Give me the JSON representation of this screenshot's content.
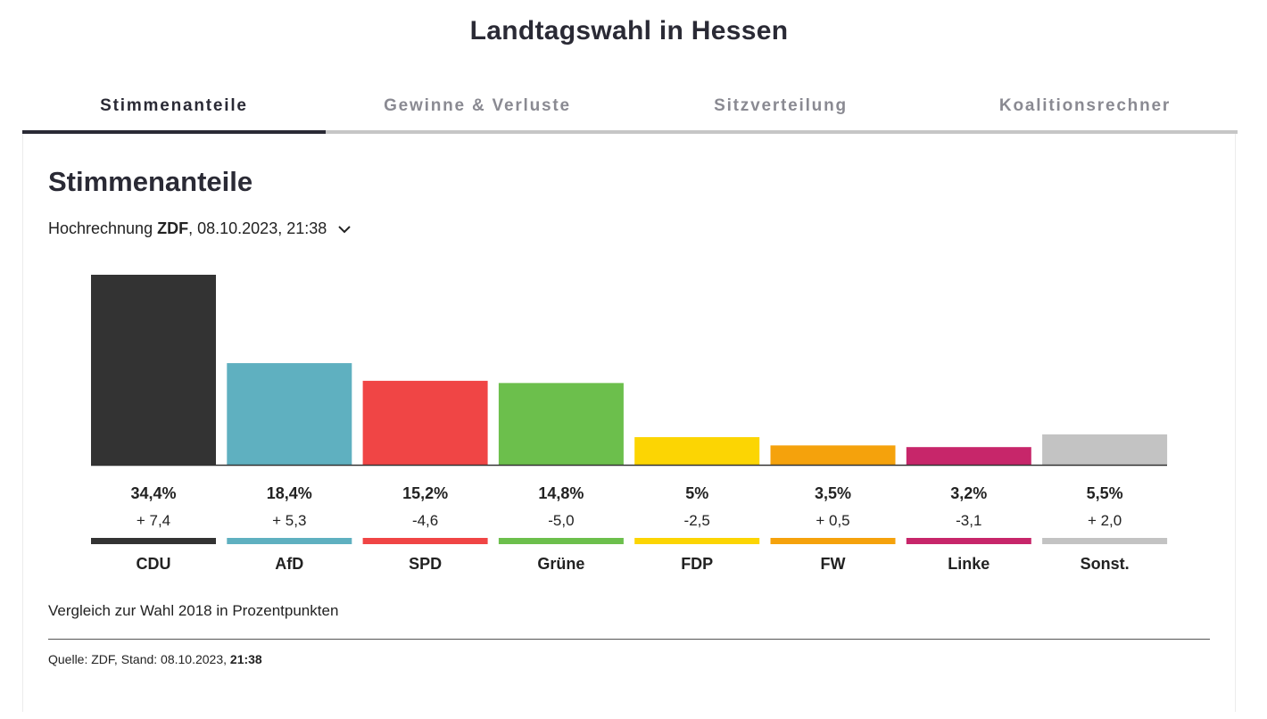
{
  "page_title": "Landtagswahl in Hessen",
  "tabs": [
    {
      "label": "Stimmenanteile",
      "active": true
    },
    {
      "label": "Gewinne & Verluste",
      "active": false
    },
    {
      "label": "Sitzverteilung",
      "active": false
    },
    {
      "label": "Koalitionsrechner",
      "active": false
    }
  ],
  "section_title": "Stimmenanteile",
  "projection": {
    "prefix": "Hochrechnung",
    "source": "ZDF",
    "datetime": ", 08.10.2023, 21:38"
  },
  "chart_data": {
    "type": "bar",
    "categories": [
      "CDU",
      "AfD",
      "SPD",
      "Grüne",
      "FDP",
      "FW",
      "Linke",
      "Sonst."
    ],
    "values": [
      34.4,
      18.4,
      15.2,
      14.8,
      5.0,
      3.5,
      3.2,
      5.5
    ],
    "value_labels": [
      "34,4%",
      "18,4%",
      "15,2%",
      "14,8%",
      "5%",
      "3,5%",
      "3,2%",
      "5,5%"
    ],
    "changes": [
      7.4,
      5.3,
      -4.6,
      -5.0,
      -2.5,
      0.5,
      -3.1,
      2.0
    ],
    "change_labels": [
      "+ 7,4",
      "+ 5,3",
      "-4,6",
      "-5,0",
      "-2,5",
      "+ 0,5",
      "-3,1",
      "+ 2,0"
    ],
    "colors": [
      "#333333",
      "#5fb0c0",
      "#f04545",
      "#6cbf4c",
      "#fcd503",
      "#f5a20c",
      "#c7266a",
      "#c3c3c3"
    ],
    "ylim": [
      0,
      34.4
    ]
  },
  "note": "Vergleich zur Wahl 2018 in Prozentpunkten",
  "source_line": {
    "prefix": "Quelle: ZDF, Stand: 08.10.2023, ",
    "time": "21:38"
  },
  "icons": {
    "dropdown": "chevron-down-icon"
  }
}
